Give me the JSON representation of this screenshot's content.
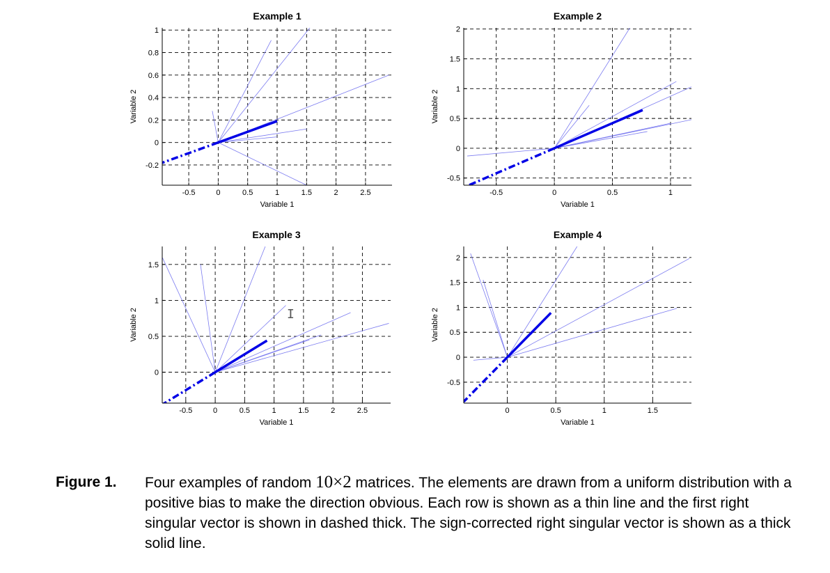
{
  "chart_data": [
    {
      "type": "line",
      "title": "Example 1",
      "xlabel": "Variable 1",
      "ylabel": "Variable 2",
      "xlim": [
        -0.95,
        2.95
      ],
      "ylim": [
        -0.38,
        1.02
      ],
      "xticks": [
        -0.5,
        0,
        0.5,
        1,
        1.5,
        2,
        2.5
      ],
      "xtick_labels": [
        "-0.5",
        "0",
        "0.5",
        "1",
        "1.5",
        "2",
        "2.5"
      ],
      "yticks": [
        -0.2,
        0,
        0.2,
        0.4,
        0.6,
        0.8,
        1
      ],
      "ytick_labels": [
        "-0.2",
        "0",
        "0.2",
        "0.4",
        "0.6",
        "0.8",
        "1"
      ],
      "grid": true,
      "row_vectors": [
        [
          0.9,
          0.91
        ],
        [
          1.6,
          1.05
        ],
        [
          2.9,
          0.6
        ],
        [
          1.5,
          0.12
        ],
        [
          -0.1,
          0.28
        ],
        [
          1.5,
          -0.38
        ],
        [
          1.0,
          0.05
        ]
      ],
      "thick_vector": [
        1.0,
        0.19
      ],
      "dashed_vector": [
        -1.0,
        -0.19
      ]
    },
    {
      "type": "line",
      "title": "Example 2",
      "xlabel": "Variable 1",
      "ylabel": "Variable 2",
      "xlim": [
        -0.78,
        1.18
      ],
      "ylim": [
        -0.62,
        2.02
      ],
      "xticks": [
        -0.5,
        0,
        0.5,
        1
      ],
      "xtick_labels": [
        "-0.5",
        "0",
        "0.5",
        "1"
      ],
      "yticks": [
        -0.5,
        0,
        0.5,
        1,
        1.5,
        2
      ],
      "ytick_labels": [
        "-0.5",
        "0",
        "0.5",
        "1",
        "1.5",
        "2"
      ],
      "grid": true,
      "row_vectors": [
        [
          0.65,
          2.02
        ],
        [
          0.3,
          0.72
        ],
        [
          1.05,
          1.12
        ],
        [
          1.18,
          1.03
        ],
        [
          1.18,
          0.48
        ],
        [
          1.0,
          0.42
        ],
        [
          -0.75,
          -0.13
        ],
        [
          0.8,
          0.28
        ]
      ],
      "thick_vector": [
        0.76,
        0.64
      ],
      "dashed_vector": [
        -0.76,
        -0.64
      ]
    },
    {
      "type": "line",
      "title": "Example 3",
      "xlabel": "Variable 1",
      "ylabel": "Variable 2",
      "xlim": [
        -0.9,
        2.98
      ],
      "ylim": [
        -0.43,
        1.75
      ],
      "xticks": [
        -0.5,
        0,
        0.5,
        1,
        1.5,
        2,
        2.5
      ],
      "xtick_labels": [
        "-0.5",
        "0",
        "0.5",
        "1",
        "1.5",
        "2",
        "2.5"
      ],
      "yticks": [
        0,
        0.5,
        1,
        1.5
      ],
      "ytick_labels": [
        "0",
        "0.5",
        "1",
        "1.5"
      ],
      "grid": true,
      "row_vectors": [
        [
          -0.9,
          1.6
        ],
        [
          -0.25,
          1.5
        ],
        [
          0.85,
          1.75
        ],
        [
          1.2,
          0.93
        ],
        [
          2.3,
          0.83
        ],
        [
          2.95,
          0.68
        ],
        [
          1.8,
          0.52
        ],
        [
          1.6,
          0.45
        ]
      ],
      "thick_vector": [
        0.88,
        0.44
      ],
      "dashed_vector": [
        -0.88,
        -0.44
      ]
    },
    {
      "type": "line",
      "title": "Example 4",
      "xlabel": "Variable 1",
      "ylabel": "Variable 2",
      "xlim": [
        -0.45,
        1.9
      ],
      "ylim": [
        -0.92,
        2.22
      ],
      "xticks": [
        0,
        0.5,
        1,
        1.5
      ],
      "xtick_labels": [
        "0",
        "0.5",
        "1",
        "1.5"
      ],
      "yticks": [
        -0.5,
        0,
        0.5,
        1,
        1.5,
        2
      ],
      "ytick_labels": [
        "-0.5",
        "0",
        "0.5",
        "1",
        "1.5",
        "2"
      ],
      "grid": true,
      "row_vectors": [
        [
          -0.38,
          2.08
        ],
        [
          -0.25,
          1.55
        ],
        [
          0.72,
          2.22
        ],
        [
          1.88,
          1.98
        ],
        [
          1.75,
          0.98
        ],
        [
          -0.35,
          -0.06
        ]
      ],
      "thick_vector": [
        0.45,
        0.89
      ],
      "dashed_vector": [
        -0.45,
        -0.89
      ]
    }
  ],
  "caption": {
    "label": "Figure 1.",
    "text_before": "Four examples of random ",
    "math": "10×2",
    "text_after": " matrices. The elements are drawn from a uniform distribution with a positive bias to make the direction obvious. Each row is shown as a thin line and the first right singular vector is shown in dashed thick. The sign-corrected right singular vector is shown as a thick solid line."
  },
  "colors": {
    "vector": "#0000e6",
    "thin_line": "#7b7bf0",
    "grid": "#000000"
  },
  "cursor_icon": "text-cursor-icon"
}
